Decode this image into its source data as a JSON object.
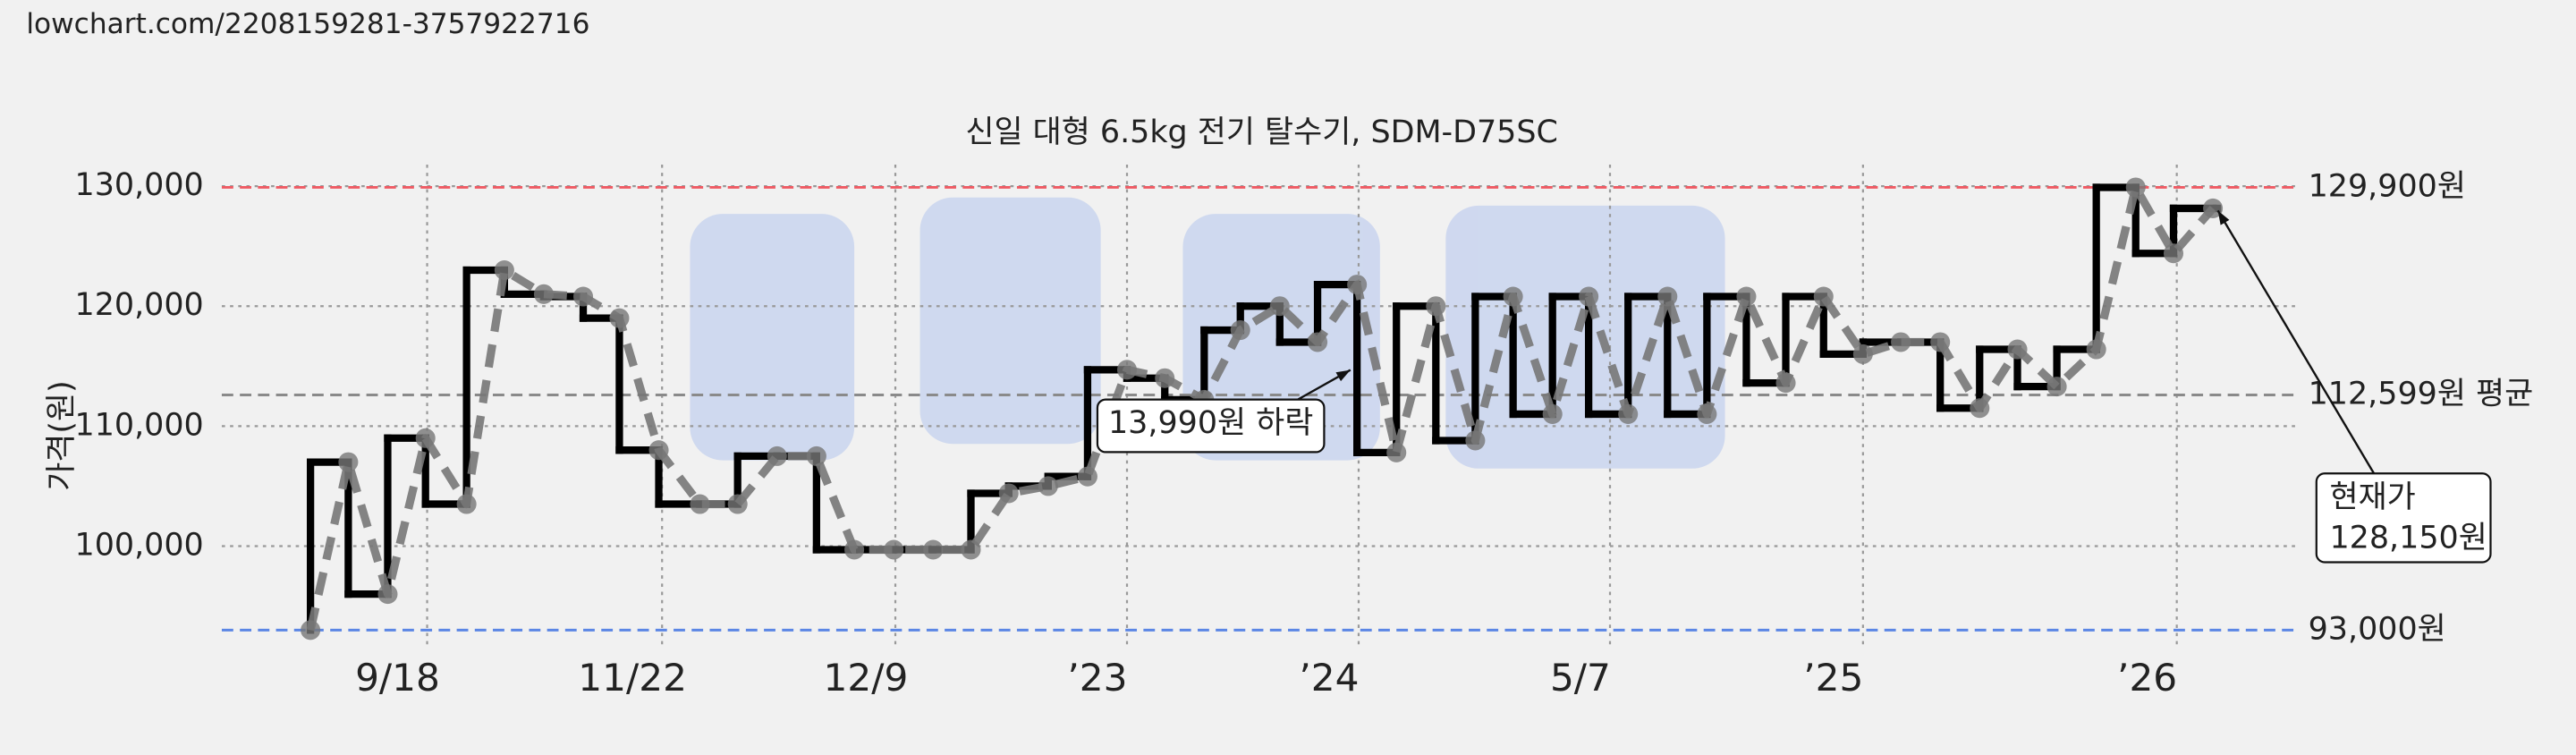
{
  "header": "lowchart.com/2208159281-3757922716",
  "chart_data": {
    "type": "line",
    "title": "신일 대형 6.5kg 전기 탈수기, SDM-D75SC",
    "y_label": "가격(원)",
    "x": [
      189,
      212,
      236,
      259,
      284,
      307,
      331,
      355,
      377,
      401,
      426,
      449,
      473,
      497,
      520,
      544,
      568,
      591,
      614,
      638,
      662,
      686,
      709,
      733,
      755,
      779,
      802,
      826,
      850,
      874,
      898,
      921,
      945,
      967,
      991,
      1015,
      1039,
      1063,
      1087,
      1110,
      1134,
      1157,
      1181,
      1205,
      1228,
      1252,
      1276,
      1300,
      1323,
      1347
    ],
    "values": [
      93000,
      107000,
      96000,
      109000,
      103500,
      123000,
      121000,
      120800,
      119000,
      108000,
      103500,
      103500,
      107500,
      107500,
      99700,
      99700,
      99700,
      99700,
      104400,
      105000,
      105800,
      114700,
      114000,
      112200,
      118000,
      120000,
      117000,
      121800,
      107800,
      120000,
      108800,
      120800,
      111000,
      120800,
      111000,
      120800,
      111000,
      120800,
      113600,
      120800,
      116000,
      117000,
      117000,
      111500,
      116400,
      113300,
      116400,
      129900,
      124400,
      128150
    ],
    "xlim": [
      135,
      1400
    ],
    "xticks": [
      {
        "value": 260,
        "label": "9/18"
      },
      {
        "value": 403,
        "label": "11/22"
      },
      {
        "value": 545,
        "label": "12/9"
      },
      {
        "value": 686,
        "label": "’23"
      },
      {
        "value": 827,
        "label": "’24"
      },
      {
        "value": 980,
        "label": "5/7"
      },
      {
        "value": 1134,
        "label": "’25"
      },
      {
        "value": 1325,
        "label": "’26"
      }
    ],
    "ylim": [
      91400,
      131800
    ],
    "yticks": [
      {
        "value": 100000,
        "label": "100,000"
      },
      {
        "value": 110000,
        "label": "110,000"
      },
      {
        "value": 120000,
        "label": "120,000"
      },
      {
        "value": 130000,
        "label": "130,000"
      }
    ],
    "grid": true,
    "step_color": "#000000",
    "line_color": "#777777",
    "reference_lines": [
      {
        "value": 129900,
        "label": "129,900원",
        "color": "#ef5a63"
      },
      {
        "value": 112599,
        "label": "112,599원 평균",
        "color": "#8a8a8a"
      },
      {
        "value": 93000,
        "label": "93,000원",
        "color": "#5b86e5"
      }
    ],
    "annotations": [
      {
        "lines": [
          "13,990원 하락"
        ]
      },
      {
        "lines": [
          "현재가",
          "128,150원"
        ]
      }
    ]
  }
}
